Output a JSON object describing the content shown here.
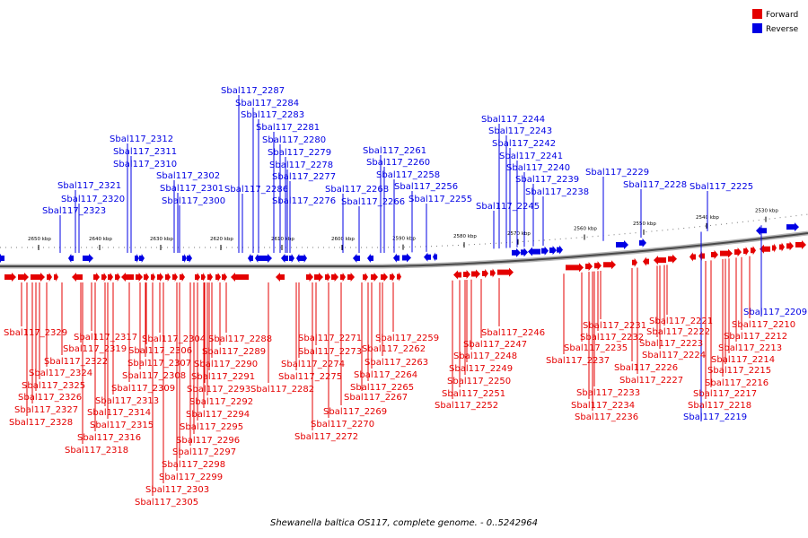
{
  "legend": [
    {
      "label": "Forward",
      "color": "#e40000"
    },
    {
      "label": "Reverse",
      "color": "#0000e4"
    }
  ],
  "caption": "Shewanella baltica OS117, complete genome. - 0..5242964",
  "scale_labels": [
    "2650 kbp",
    "2640 kbp",
    "2630 kbp",
    "2620 kbp",
    "2610 kbp",
    "2600 kbp",
    "2590 kbp",
    "2580 kbp",
    "2570 kbp",
    "2560 kbp",
    "2550 kbp",
    "2540 kbp",
    "2530 kbp"
  ],
  "reverse_genes": [
    "Sbal117_2287",
    "Sbal117_2284",
    "Sbal117_2283",
    "Sbal117_2281",
    "Sbal117_2280",
    "Sbal117_2279",
    "Sbal117_2278",
    "Sbal117_2277",
    "Sbal117_2276",
    "Sbal117_2286",
    "Sbal117_2312",
    "Sbal117_2311",
    "Sbal117_2310",
    "Sbal117_2302",
    "Sbal117_2301",
    "Sbal117_2300",
    "Sbal117_2321",
    "Sbal117_2320",
    "Sbal117_2323",
    "Sbal117_2261",
    "Sbal117_2260",
    "Sbal117_2258",
    "Sbal117_2256",
    "Sbal117_2255",
    "Sbal117_2268",
    "Sbal117_2266",
    "Sbal117_2244",
    "Sbal117_2243",
    "Sbal117_2242",
    "Sbal117_2241",
    "Sbal117_2240",
    "Sbal117_2239",
    "Sbal117_2238",
    "Sbal117_2245",
    "Sbal117_2229",
    "Sbal117_2228",
    "Sbal117_2225",
    "Sbal117_2209",
    "Sbal117_2219"
  ],
  "forward_genes": [
    "Sbal117_2329",
    "Sbal117_2317",
    "Sbal117_2319",
    "Sbal117_2322",
    "Sbal117_2324",
    "Sbal117_2325",
    "Sbal117_2326",
    "Sbal117_2327",
    "Sbal117_2328",
    "Sbal117_2313",
    "Sbal117_2314",
    "Sbal117_2315",
    "Sbal117_2316",
    "Sbal117_2318",
    "Sbal117_2304",
    "Sbal117_2306",
    "Sbal117_2307",
    "Sbal117_2308",
    "Sbal117_2309",
    "Sbal117_2288",
    "Sbal117_2289",
    "Sbal117_2290",
    "Sbal117_2291",
    "Sbal117_2292",
    "Sbal117_2293",
    "Sbal117_2294",
    "Sbal117_2295",
    "Sbal117_2296",
    "Sbal117_2297",
    "Sbal117_2298",
    "Sbal117_2299",
    "Sbal117_2303",
    "Sbal117_2305",
    "Sbal117_2282",
    "Sbal117_2271",
    "Sbal117_2273",
    "Sbal117_2274",
    "Sbal117_2275",
    "Sbal117_2269",
    "Sbal117_2270",
    "Sbal117_2272",
    "Sbal117_2259",
    "Sbal117_2262",
    "Sbal117_2263",
    "Sbal117_2264",
    "Sbal117_2265",
    "Sbal117_2267",
    "Sbal117_2246",
    "Sbal117_2247",
    "Sbal117_2248",
    "Sbal117_2249",
    "Sbal117_2250",
    "Sbal117_2251",
    "Sbal117_2252",
    "Sbal117_2231",
    "Sbal117_2232",
    "Sbal117_2235",
    "Sbal117_2237",
    "Sbal117_2233",
    "Sbal117_2234",
    "Sbal117_2236",
    "Sbal117_2221",
    "Sbal117_2222",
    "Sbal117_2223",
    "Sbal117_2224",
    "Sbal117_2226",
    "Sbal117_2227",
    "Sbal117_2210",
    "Sbal117_2212",
    "Sbal117_2213",
    "Sbal117_2214",
    "Sbal117_2215",
    "Sbal117_2216",
    "Sbal117_2217",
    "Sbal117_2218"
  ]
}
